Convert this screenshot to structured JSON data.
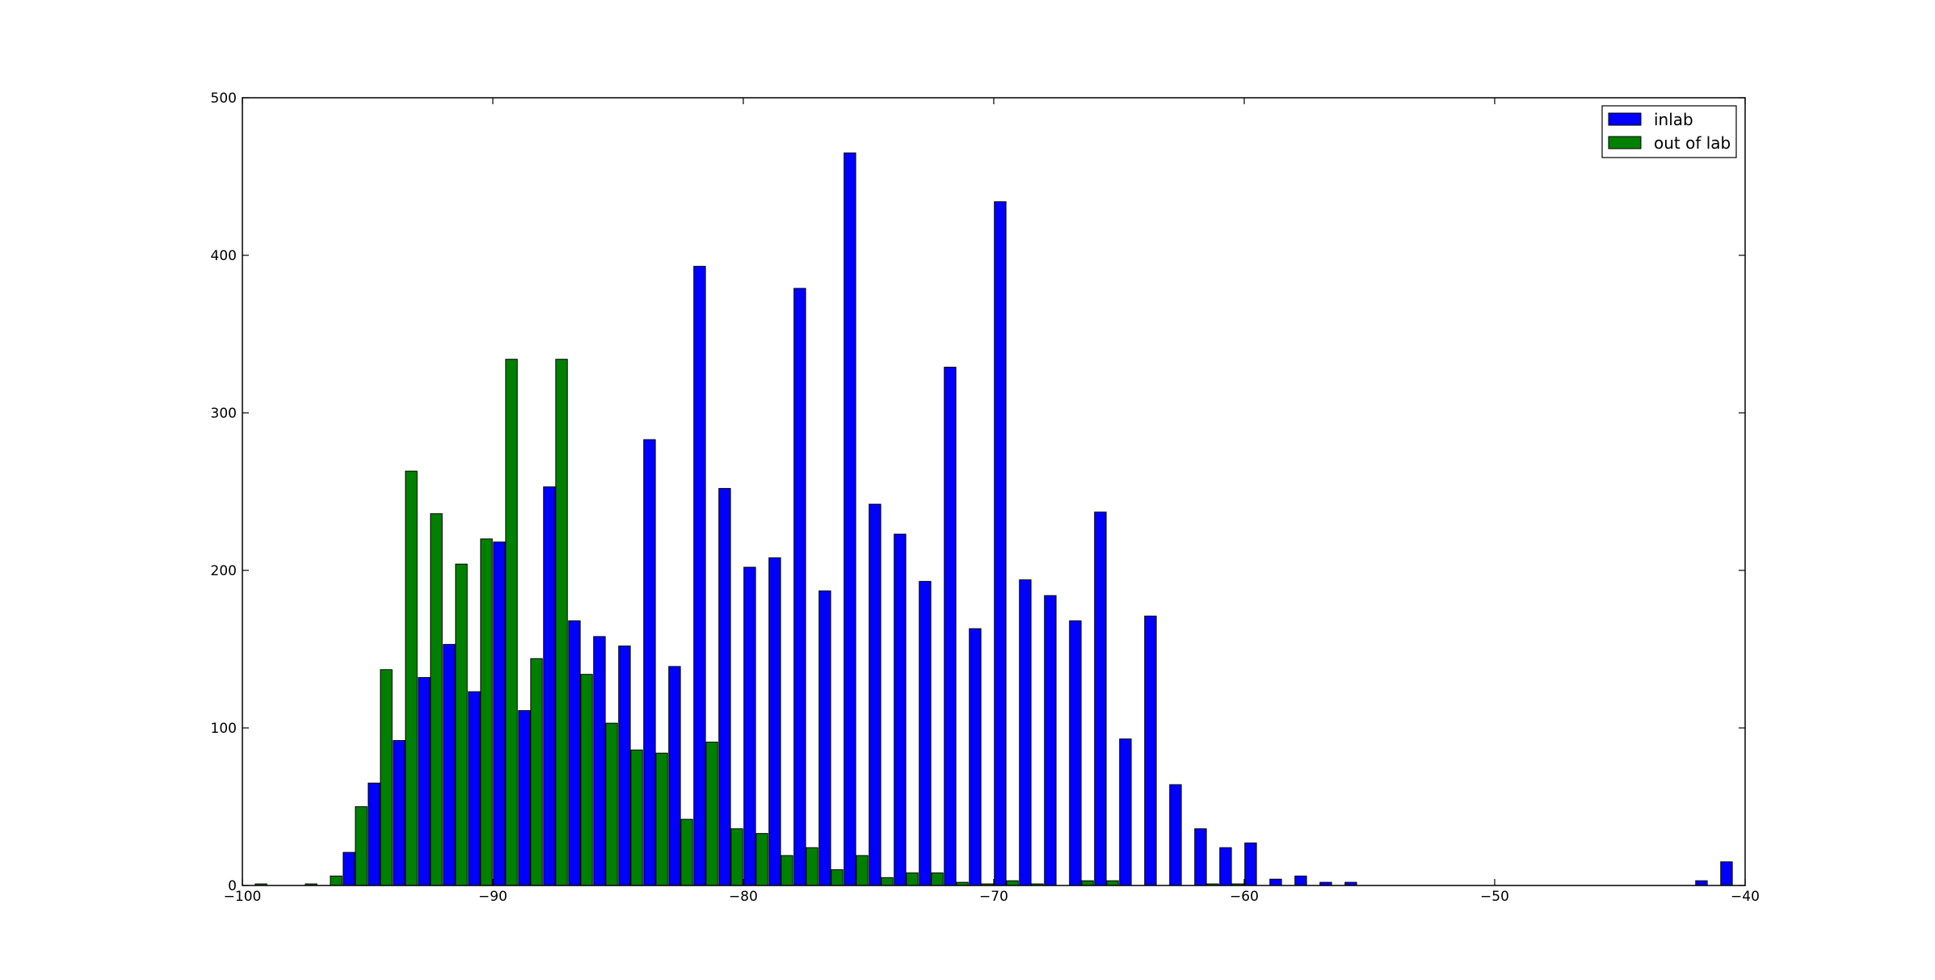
{
  "chart_data": {
    "type": "bar",
    "title": "",
    "xlabel": "",
    "ylabel": "",
    "xlim": [
      -100,
      -40
    ],
    "ylim": [
      0,
      500
    ],
    "x_ticks": [
      -100,
      -90,
      -80,
      -70,
      -60,
      -50,
      -40
    ],
    "y_ticks": [
      0,
      100,
      200,
      300,
      400,
      500
    ],
    "x_tick_labels": [
      "−100",
      "−90",
      "−80",
      "−70",
      "−60",
      "−50",
      "−40"
    ],
    "y_tick_labels": [
      "0",
      "100",
      "200",
      "300",
      "400",
      "500"
    ],
    "grid": false,
    "legend_position": "top-right",
    "bin_start": -100,
    "bin_width": 1,
    "series": [
      {
        "name": "inlab",
        "color": "#0000ff",
        "values": [
          0,
          0,
          0,
          0,
          21,
          65,
          92,
          132,
          153,
          123,
          218,
          111,
          253,
          168,
          158,
          152,
          283,
          139,
          393,
          252,
          202,
          208,
          379,
          187,
          465,
          242,
          223,
          193,
          329,
          163,
          434,
          194,
          184,
          168,
          237,
          93,
          171,
          64,
          36,
          24,
          27,
          4,
          6,
          2,
          2,
          0,
          0,
          0,
          0,
          0,
          0,
          0,
          0,
          0,
          0,
          0,
          0,
          0,
          3,
          15
        ]
      },
      {
        "name": "out of lab",
        "color": "#008000",
        "values": [
          1,
          0,
          1,
          6,
          50,
          137,
          263,
          236,
          204,
          220,
          334,
          144,
          334,
          134,
          103,
          86,
          84,
          42,
          91,
          36,
          33,
          19,
          24,
          10,
          19,
          5,
          8,
          8,
          2,
          1,
          3,
          1,
          0,
          3,
          3,
          0,
          0,
          0,
          1,
          1,
          0,
          0,
          0,
          0,
          0,
          0,
          0,
          0,
          0,
          0,
          0,
          0,
          0,
          0,
          0,
          0,
          0,
          0,
          0,
          0
        ]
      }
    ]
  }
}
